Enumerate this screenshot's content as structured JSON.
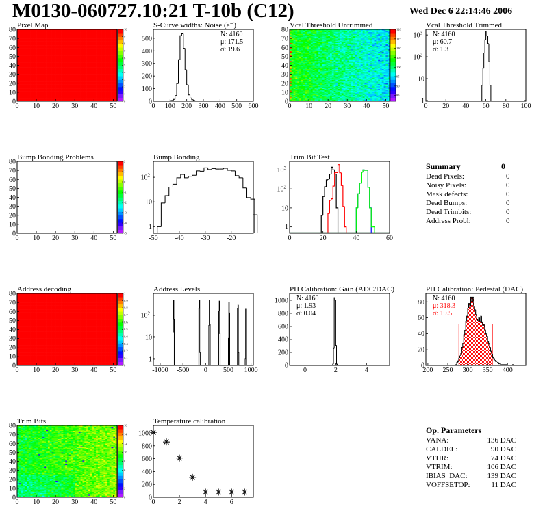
{
  "header": {
    "title": "M0130-060727.10:21 T-10b (C12)",
    "date": "Wed Dec  6 22:14:46 2006"
  },
  "palette_colors": [
    "#7f00ff",
    "#0000ff",
    "#00ffff",
    "#00ff00",
    "#ffff00",
    "#ff0000"
  ],
  "panels": [
    {
      "title": "Pixel Map",
      "type": "heatmap",
      "xlim": [
        0,
        52
      ],
      "ylim": [
        0,
        80
      ],
      "xticks": [
        0,
        10,
        20,
        30,
        40,
        50
      ],
      "yticks": [
        0,
        10,
        20,
        30,
        40,
        50,
        60,
        70,
        80
      ],
      "zlim": [
        0,
        10
      ],
      "zticks": [
        0,
        1,
        2,
        3,
        4,
        5,
        6,
        7,
        8,
        9,
        10
      ],
      "fill": "uniform",
      "uniform_value": 10
    },
    {
      "title": "S-Curve widths: Noise (e⁻)",
      "type": "hist",
      "log": false,
      "xlim": [
        0,
        600
      ],
      "ylim": [
        0,
        570
      ],
      "xticks": [
        0,
        100,
        200,
        300,
        400,
        500,
        600
      ],
      "yticks": [
        0,
        100,
        200,
        300,
        400,
        500
      ],
      "bin_width": 10,
      "bins": [
        [
          100,
          5
        ],
        [
          110,
          6
        ],
        [
          120,
          15
        ],
        [
          130,
          45
        ],
        [
          140,
          140
        ],
        [
          150,
          330
        ],
        [
          160,
          520
        ],
        [
          170,
          540
        ],
        [
          180,
          420
        ],
        [
          190,
          250
        ],
        [
          200,
          130
        ],
        [
          210,
          50
        ],
        [
          220,
          25
        ],
        [
          230,
          12
        ],
        [
          240,
          6
        ],
        [
          250,
          3
        ],
        [
          260,
          2
        ]
      ],
      "stats_align": "right",
      "stats": [
        {
          "text": "N: 4160"
        },
        {
          "text": "μ: 171.5"
        },
        {
          "text": "σ: 19.6"
        }
      ]
    },
    {
      "title": "Vcal Threshold Untrimmed",
      "type": "heatmap",
      "xlim": [
        0,
        52
      ],
      "ylim": [
        0,
        80
      ],
      "xticks": [
        0,
        10,
        20,
        30,
        40,
        50
      ],
      "yticks": [
        0,
        10,
        20,
        30,
        40,
        50,
        60,
        70,
        80
      ],
      "zlim": [
        82,
        120
      ],
      "zticks": [
        85,
        90,
        95,
        100,
        105,
        110,
        115,
        120
      ],
      "fill": "vcal"
    },
    {
      "title": "Vcal Threshold Trimmed",
      "type": "hist",
      "log": true,
      "xlim": [
        0,
        100
      ],
      "ylim": [
        0.93,
        1800
      ],
      "xticks": [
        0,
        20,
        40,
        60,
        80,
        100
      ],
      "yticks": [
        1,
        10,
        100,
        1000
      ],
      "bin_width": 1,
      "bins": [
        [
          56,
          5
        ],
        [
          57,
          30
        ],
        [
          58,
          150
        ],
        [
          59,
          600
        ],
        [
          60,
          1500
        ],
        [
          61,
          900
        ],
        [
          62,
          400
        ],
        [
          63,
          60
        ],
        [
          64,
          5
        ],
        [
          99,
          1
        ]
      ],
      "stats_align": "left",
      "stats": [
        {
          "text": "N: 4160"
        },
        {
          "text": "μ: 60.7"
        },
        {
          "text": "σ:  1.3"
        }
      ]
    },
    {
      "title": "Bump Bonding Problems",
      "type": "heatmap",
      "xlim": [
        0,
        52
      ],
      "ylim": [
        0,
        80
      ],
      "xticks": [
        0,
        10,
        20,
        30,
        40,
        50
      ],
      "yticks": [
        0,
        10,
        20,
        30,
        40,
        50,
        60,
        70,
        80
      ],
      "zlim": [
        -5,
        2
      ],
      "zticks": [
        -5,
        -4,
        -3,
        -2,
        -1,
        0,
        1,
        2
      ],
      "fill": "empty"
    },
    {
      "title": "Bump Bonding",
      "type": "hist",
      "log": true,
      "xlim": [
        -50,
        -11.5
      ],
      "ylim": [
        0.54,
        436
      ],
      "xticks": [
        -50,
        -40,
        -30,
        -20
      ],
      "yticks": [
        1,
        10,
        100
      ],
      "bin_width": 1.5,
      "bins": [
        [
          -48.5,
          1
        ],
        [
          -47,
          9
        ],
        [
          -45.5,
          18
        ],
        [
          -44,
          40
        ],
        [
          -42.5,
          52
        ],
        [
          -41,
          95
        ],
        [
          -39.5,
          130
        ],
        [
          -38,
          95
        ],
        [
          -36.5,
          110
        ],
        [
          -35,
          120
        ],
        [
          -33.5,
          180
        ],
        [
          -32,
          175
        ],
        [
          -30.5,
          240
        ],
        [
          -29,
          205
        ],
        [
          -27.5,
          225
        ],
        [
          -26,
          215
        ],
        [
          -24.5,
          215
        ],
        [
          -23,
          230
        ],
        [
          -21.5,
          190
        ],
        [
          -20,
          180
        ],
        [
          -18.5,
          115
        ],
        [
          -17,
          95
        ],
        [
          -15.5,
          37
        ],
        [
          -14,
          15
        ],
        [
          -12.5,
          13
        ],
        [
          -11.5,
          3
        ]
      ]
    },
    {
      "title": "Trim Bit Test",
      "type": "multihist",
      "log": true,
      "xlim": [
        0,
        60
      ],
      "ylim": [
        0.46,
        2800
      ],
      "xticks": [
        0,
        20,
        40,
        60
      ],
      "yticks": [
        1,
        10,
        100,
        1000
      ],
      "bin_width": 1,
      "series": [
        {
          "color": "#000000",
          "bins": [
            [
              19,
              4
            ],
            [
              20,
              40
            ],
            [
              21,
              130
            ],
            [
              22,
              300
            ],
            [
              23,
              330
            ],
            [
              24,
              600
            ],
            [
              25,
              1400
            ],
            [
              26,
              1000
            ],
            [
              27,
              600
            ],
            [
              28,
              10
            ]
          ]
        },
        {
          "color": "#ff0000",
          "bins": [
            [
              23,
              5
            ],
            [
              24,
              25
            ],
            [
              25,
              30
            ],
            [
              26,
              140
            ],
            [
              27,
              700
            ],
            [
              28,
              720
            ],
            [
              29,
              1900
            ],
            [
              30,
              700
            ],
            [
              31,
              150
            ],
            [
              32,
              12
            ],
            [
              33,
              1
            ]
          ]
        },
        {
          "color": "#0000ff",
          "bins": [
            [
              40,
              10
            ],
            [
              41,
              55
            ],
            [
              42,
              200
            ],
            [
              43,
              750
            ],
            [
              44,
              1000
            ],
            [
              45,
              950
            ],
            [
              46,
              950
            ],
            [
              47,
              120
            ],
            [
              48,
              10
            ]
          ]
        },
        {
          "color": "#00ff00",
          "bins": [
            [
              40,
              10
            ],
            [
              41,
              55
            ],
            [
              42,
              200
            ],
            [
              43,
              750
            ],
            [
              44,
              1000
            ],
            [
              45,
              950
            ],
            [
              46,
              950
            ],
            [
              47,
              120
            ],
            [
              48,
              10
            ],
            [
              49,
              1
            ],
            [
              50,
              1
            ]
          ]
        }
      ]
    },
    {
      "title": "Address decoding",
      "type": "heatmap",
      "xlim": [
        0,
        52
      ],
      "ylim": [
        0,
        80
      ],
      "xticks": [
        0,
        10,
        20,
        30,
        40,
        50
      ],
      "yticks": [
        0,
        10,
        20,
        30,
        40,
        50,
        60,
        70,
        80
      ],
      "zlim": [
        0,
        1
      ],
      "zticks": [
        0,
        0.1,
        0.2,
        0.3,
        0.4,
        0.5,
        0.6,
        0.7,
        0.8,
        0.9,
        1
      ],
      "fill": "uniform",
      "uniform_value": 1
    },
    {
      "title": "Address Levels",
      "type": "hist",
      "log": true,
      "xlim": [
        -1150,
        1050
      ],
      "ylim": [
        0.52,
        1000
      ],
      "xticks": [
        -1000,
        -500,
        0,
        500,
        1000
      ],
      "yticks": [
        1,
        10,
        100
      ],
      "bin_width": 10,
      "bins": [
        [
          -720,
          16
        ],
        [
          -710,
          500
        ],
        [
          -700,
          65
        ],
        [
          -150,
          200
        ],
        [
          -140,
          500
        ],
        [
          -130,
          2
        ],
        [
          70,
          35
        ],
        [
          80,
          500
        ],
        [
          90,
          40
        ],
        [
          290,
          160
        ],
        [
          300,
          450
        ],
        [
          310,
          15
        ],
        [
          500,
          9
        ],
        [
          510,
          400
        ],
        [
          520,
          130
        ],
        [
          700,
          200
        ],
        [
          710,
          300
        ],
        [
          720,
          2
        ],
        [
          870,
          1
        ],
        [
          880,
          190
        ],
        [
          890,
          190
        ]
      ]
    },
    {
      "title": "PH Calibration: Gain (ADC/DAC)",
      "type": "hist",
      "log": false,
      "xlim": [
        -1,
        5.5
      ],
      "ylim": [
        0,
        1105
      ],
      "xticks": [
        0,
        2,
        4
      ],
      "yticks": [
        0,
        200,
        400,
        600,
        800,
        1000
      ],
      "bin_width": 0.05,
      "bins": [
        [
          1.8,
          20
        ],
        [
          1.85,
          260
        ],
        [
          1.9,
          1040
        ],
        [
          1.95,
          1000
        ],
        [
          2.0,
          300
        ],
        [
          2.05,
          20
        ]
      ],
      "stats_align": "left",
      "stats": [
        {
          "text": "N: 4160"
        },
        {
          "text": "μ: 1.93"
        },
        {
          "text": "σ: 0.04"
        }
      ]
    },
    {
      "title": "PH Calibration: Pedestal (DAC)",
      "type": "hist",
      "log": false,
      "xlim": [
        195,
        446
      ],
      "ylim": [
        0,
        90.6
      ],
      "xticks": [
        200,
        250,
        300,
        350,
        400
      ],
      "yticks": [
        0,
        20,
        40,
        60,
        80
      ],
      "bin_width": 2.5,
      "bins": [
        [
          270,
          1
        ],
        [
          272.5,
          3
        ],
        [
          275,
          5
        ],
        [
          277.5,
          9
        ],
        [
          280,
          12
        ],
        [
          282.5,
          15
        ],
        [
          285,
          22
        ],
        [
          287.5,
          28
        ],
        [
          290,
          38
        ],
        [
          292.5,
          44
        ],
        [
          295,
          55
        ],
        [
          297.5,
          62
        ],
        [
          300,
          72
        ],
        [
          302.5,
          78
        ],
        [
          305,
          74
        ],
        [
          307.5,
          86
        ],
        [
          310,
          80
        ],
        [
          312.5,
          86
        ],
        [
          315,
          74
        ],
        [
          317.5,
          70
        ],
        [
          320,
          64
        ],
        [
          322.5,
          58
        ],
        [
          325,
          56
        ],
        [
          327.5,
          60
        ],
        [
          330,
          55
        ],
        [
          332.5,
          62
        ],
        [
          335,
          54
        ],
        [
          337.5,
          50
        ],
        [
          340,
          52
        ],
        [
          342.5,
          45
        ],
        [
          345,
          40
        ],
        [
          347.5,
          36
        ],
        [
          350,
          30
        ],
        [
          352.5,
          27
        ],
        [
          355,
          22
        ],
        [
          357.5,
          18
        ],
        [
          360,
          14
        ],
        [
          362.5,
          10
        ],
        [
          365,
          8
        ],
        [
          367.5,
          6
        ],
        [
          370,
          5
        ],
        [
          372.5,
          4
        ],
        [
          375,
          3
        ],
        [
          377.5,
          2
        ],
        [
          380,
          2
        ],
        [
          385,
          1
        ],
        [
          390,
          1
        ],
        [
          395,
          1
        ],
        [
          412.5,
          1
        ]
      ],
      "fill_range": [
        278,
        362
      ],
      "fill_color": "#ff0000",
      "stats_align": "left",
      "stats": [
        {
          "text": "N: 4160"
        },
        {
          "text": "μ: 318.3",
          "color": "#ff0000"
        },
        {
          "text": "σ: 19.5",
          "color": "#ff0000"
        }
      ]
    },
    {
      "title": "Trim Bits",
      "type": "heatmap",
      "xlim": [
        0,
        52
      ],
      "ylim": [
        0,
        80
      ],
      "xticks": [
        0,
        10,
        20,
        30,
        40,
        50
      ],
      "yticks": [
        0,
        10,
        20,
        30,
        40,
        50,
        60,
        70,
        80
      ],
      "zlim": [
        0,
        16
      ],
      "zticks": [
        0,
        2,
        4,
        6,
        8,
        10,
        12,
        14,
        16
      ],
      "fill": "trim"
    },
    {
      "title": "Temperature calibration",
      "type": "scatter",
      "xlim": [
        0,
        7.67
      ],
      "ylim": [
        0,
        1117
      ],
      "xticks": [
        0,
        2,
        4,
        6
      ],
      "yticks": [
        0,
        200,
        400,
        600,
        800,
        1000
      ],
      "points": [
        [
          0,
          1010
        ],
        [
          1,
          860
        ],
        [
          2,
          610
        ],
        [
          3,
          310
        ],
        [
          4,
          80
        ],
        [
          5,
          80
        ],
        [
          6,
          80
        ],
        [
          7,
          80
        ]
      ]
    }
  ],
  "summary": {
    "title": "Summary",
    "total": "0",
    "rows": [
      {
        "label": "Dead Pixels:",
        "value": "0"
      },
      {
        "label": "Noisy Pixels:",
        "value": "0"
      },
      {
        "label": "Mask defects:",
        "value": "0"
      },
      {
        "label": "Dead Bumps:",
        "value": "0"
      },
      {
        "label": "Dead Trimbits:",
        "value": "0"
      },
      {
        "label": "Address Probl:",
        "value": "0"
      }
    ]
  },
  "op_params": {
    "title": "Op. Parameters",
    "rows": [
      {
        "label": "VANA:",
        "value": "136 DAC"
      },
      {
        "label": "CALDEL:",
        "value": "90 DAC"
      },
      {
        "label": "VTHR:",
        "value": "74 DAC"
      },
      {
        "label": "VTRIM:",
        "value": "106 DAC"
      },
      {
        "label": "IBIAS_DAC:",
        "value": "139 DAC"
      },
      {
        "label": "VOFFSETOP:",
        "value": "11 DAC"
      }
    ]
  }
}
